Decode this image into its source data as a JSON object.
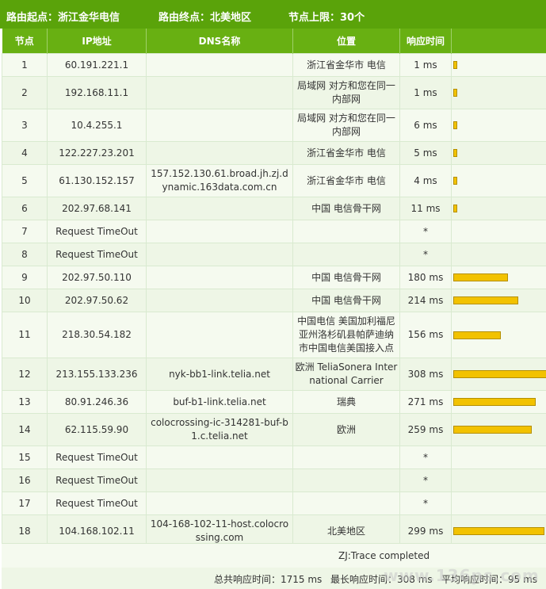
{
  "header": {
    "start_label": "路由起点：浙江金华电信",
    "end_label": "路由终点：北美地区",
    "limit_label": "节点上限：30个"
  },
  "columns": {
    "node": "节点",
    "ip": "IP地址",
    "dns": "DNS名称",
    "location": "位置",
    "time": "响应时间",
    "bar": ""
  },
  "hops": [
    {
      "node": "1",
      "ip": "60.191.221.1",
      "dns": "",
      "location": "浙江省金华市 电信",
      "time": "1 ms",
      "ms": 1
    },
    {
      "node": "2",
      "ip": "192.168.11.1",
      "dns": "",
      "location": "局域网 对方和您在同一内部网",
      "time": "1 ms",
      "ms": 1
    },
    {
      "node": "3",
      "ip": "10.4.255.1",
      "dns": "",
      "location": "局域网 对方和您在同一内部网",
      "time": "6 ms",
      "ms": 6
    },
    {
      "node": "4",
      "ip": "122.227.23.201",
      "dns": "",
      "location": "浙江省金华市 电信",
      "time": "5 ms",
      "ms": 5
    },
    {
      "node": "5",
      "ip": "61.130.152.157",
      "dns": "157.152.130.61.broad.jh.zj.dynamic.163data.com.cn",
      "location": "浙江省金华市 电信",
      "time": "4 ms",
      "ms": 4
    },
    {
      "node": "6",
      "ip": "202.97.68.141",
      "dns": "",
      "location": "中国 电信骨干网",
      "time": "11 ms",
      "ms": 11
    },
    {
      "node": "7",
      "ip": "Request TimeOut",
      "dns": "",
      "location": "",
      "time": "*",
      "ms": 0
    },
    {
      "node": "8",
      "ip": "Request TimeOut",
      "dns": "",
      "location": "",
      "time": "*",
      "ms": 0
    },
    {
      "node": "9",
      "ip": "202.97.50.110",
      "dns": "",
      "location": "中国 电信骨干网",
      "time": "180 ms",
      "ms": 180
    },
    {
      "node": "10",
      "ip": "202.97.50.62",
      "dns": "",
      "location": "中国 电信骨干网",
      "time": "214 ms",
      "ms": 214
    },
    {
      "node": "11",
      "ip": "218.30.54.182",
      "dns": "",
      "location": "中国电信 美国加利福尼亚州洛杉矶县帕萨迪纳市中国电信美国接入点",
      "time": "156 ms",
      "ms": 156
    },
    {
      "node": "12",
      "ip": "213.155.133.236",
      "dns": "nyk-bb1-link.telia.net",
      "location": "欧洲 TeliaSonera International Carrier",
      "time": "308 ms",
      "ms": 308
    },
    {
      "node": "13",
      "ip": "80.91.246.36",
      "dns": "buf-b1-link.telia.net",
      "location": "瑞典",
      "time": "271 ms",
      "ms": 271
    },
    {
      "node": "14",
      "ip": "62.115.59.90",
      "dns": "colocrossing-ic-314281-buf-b1.c.telia.net",
      "location": "欧洲",
      "time": "259 ms",
      "ms": 259
    },
    {
      "node": "15",
      "ip": "Request TimeOut",
      "dns": "",
      "location": "",
      "time": "*",
      "ms": 0
    },
    {
      "node": "16",
      "ip": "Request TimeOut",
      "dns": "",
      "location": "",
      "time": "*",
      "ms": 0
    },
    {
      "node": "17",
      "ip": "Request TimeOut",
      "dns": "",
      "location": "",
      "time": "*",
      "ms": 0
    },
    {
      "node": "18",
      "ip": "104.168.102.11",
      "dns": "104-168-102-11-host.colocrossing.com",
      "location": "北美地区",
      "time": "299 ms",
      "ms": 299
    }
  ],
  "complete_text": "ZJ:Trace completed",
  "summary": {
    "total": "总共响应时间：1715 ms",
    "max": "最长响应时间：308 ms",
    "avg": "平均响应时间：95 ms"
  },
  "watermark": "www.136ps.com",
  "colors": {
    "header_bg": "#5aa30a",
    "bar": "#f2c200"
  }
}
